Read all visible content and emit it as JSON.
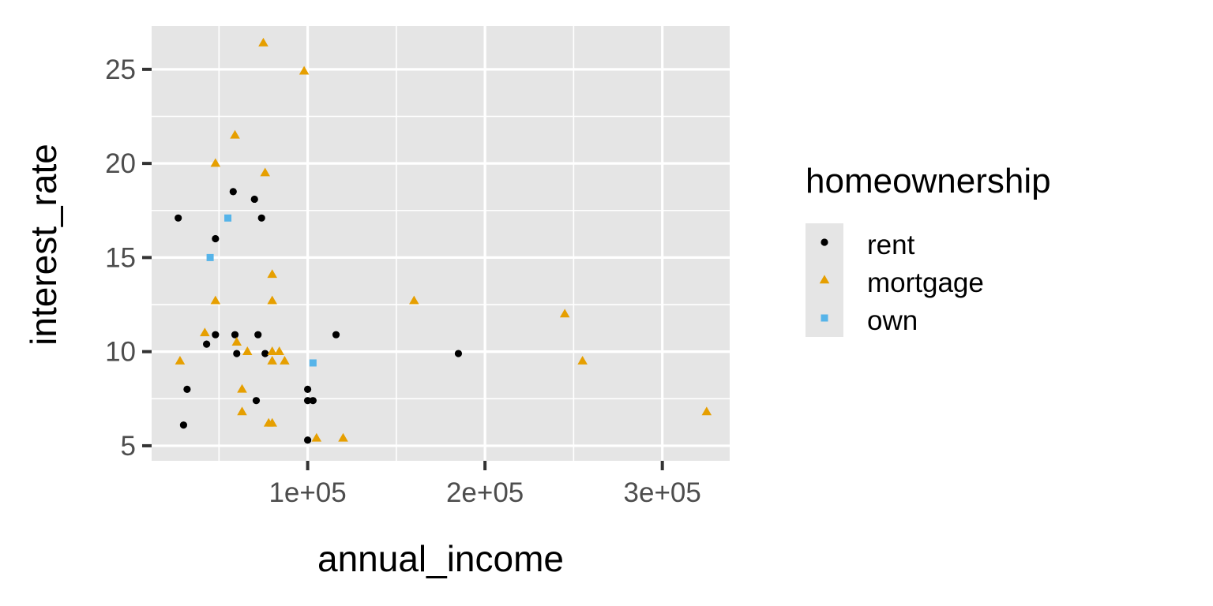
{
  "chart_data": {
    "type": "scatter",
    "title": "",
    "xlabel": "annual_income",
    "ylabel": "interest_rate",
    "xlim": [
      12000,
      338000
    ],
    "ylim": [
      4.2,
      27.3
    ],
    "x_ticks": [
      100000,
      200000,
      300000
    ],
    "x_tick_labels": [
      "1e+05",
      "2e+05",
      "3e+05"
    ],
    "y_ticks": [
      5,
      10,
      15,
      20,
      25
    ],
    "y_tick_labels": [
      "5",
      "10",
      "15",
      "20",
      "25"
    ],
    "grid": true,
    "panel_background": "#e5e5e5",
    "legend": {
      "title": "homeownership",
      "placement": "right",
      "entries": [
        {
          "label": "rent",
          "shape": "circle",
          "color": "#000000"
        },
        {
          "label": "mortgage",
          "shape": "triangle",
          "color": "#e69f00"
        },
        {
          "label": "own",
          "shape": "square",
          "color": "#56b4e9"
        }
      ]
    },
    "series": [
      {
        "name": "rent",
        "shape": "circle",
        "color": "#000000",
        "points": [
          [
            27000,
            17.1
          ],
          [
            30000,
            6.1
          ],
          [
            32000,
            8.0
          ],
          [
            43000,
            10.4
          ],
          [
            48000,
            16.0
          ],
          [
            48000,
            10.9
          ],
          [
            58000,
            18.5
          ],
          [
            59000,
            10.9
          ],
          [
            60000,
            9.9
          ],
          [
            70000,
            18.1
          ],
          [
            71000,
            7.4
          ],
          [
            72000,
            10.9
          ],
          [
            74000,
            17.1
          ],
          [
            76000,
            9.9
          ],
          [
            100000,
            8.0
          ],
          [
            100000,
            7.4
          ],
          [
            100000,
            5.3
          ],
          [
            103000,
            7.4
          ],
          [
            116000,
            10.9
          ],
          [
            185000,
            9.9
          ]
        ]
      },
      {
        "name": "mortgage",
        "shape": "triangle",
        "color": "#e69f00",
        "points": [
          [
            28000,
            9.5
          ],
          [
            42000,
            11.0
          ],
          [
            48000,
            20.0
          ],
          [
            48000,
            12.7
          ],
          [
            59000,
            21.5
          ],
          [
            60000,
            10.5
          ],
          [
            63000,
            8.0
          ],
          [
            63000,
            6.8
          ],
          [
            66000,
            10.0
          ],
          [
            75000,
            26.4
          ],
          [
            76000,
            19.5
          ],
          [
            78000,
            6.2
          ],
          [
            80000,
            6.2
          ],
          [
            80000,
            14.1
          ],
          [
            80000,
            12.7
          ],
          [
            80000,
            10.0
          ],
          [
            80000,
            9.5
          ],
          [
            84000,
            10.0
          ],
          [
            87000,
            9.5
          ],
          [
            98000,
            24.9
          ],
          [
            105000,
            5.4
          ],
          [
            120000,
            5.4
          ],
          [
            160000,
            12.7
          ],
          [
            245000,
            12.0
          ],
          [
            255000,
            9.5
          ],
          [
            325000,
            6.8
          ]
        ]
      },
      {
        "name": "own",
        "shape": "square",
        "color": "#56b4e9",
        "points": [
          [
            45000,
            15.0
          ],
          [
            55000,
            17.1
          ],
          [
            103000,
            9.4
          ]
        ]
      }
    ]
  }
}
